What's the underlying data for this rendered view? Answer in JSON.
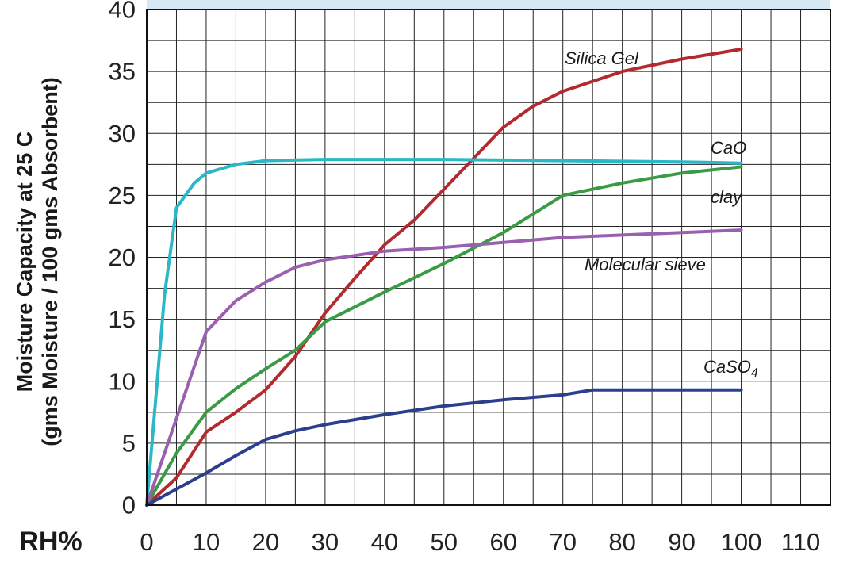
{
  "chart_data": {
    "type": "line",
    "xlabel": "RH%",
    "ylabel_line1": "Moisture Capacity at 25 C",
    "ylabel_line2": "(gms Moisture / 100 gms Absorbent)",
    "xlim": [
      0,
      115
    ],
    "ylim": [
      0,
      40
    ],
    "x_ticks": [
      0,
      10,
      20,
      30,
      40,
      50,
      60,
      70,
      80,
      90,
      100,
      110
    ],
    "y_ticks": [
      0,
      5,
      10,
      15,
      20,
      25,
      30,
      35,
      40
    ],
    "grid": true,
    "header_band_color": "#d6e8f4",
    "series": [
      {
        "name": "Silica Gel",
        "color": "#b22a2e",
        "points": [
          [
            0,
            0
          ],
          [
            5,
            2.2
          ],
          [
            10,
            5.9
          ],
          [
            15,
            7.5
          ],
          [
            20,
            9.3
          ],
          [
            25,
            12
          ],
          [
            30,
            15.5
          ],
          [
            35,
            18.3
          ],
          [
            40,
            21
          ],
          [
            45,
            23
          ],
          [
            50,
            25.5
          ],
          [
            55,
            28
          ],
          [
            60,
            30.5
          ],
          [
            65,
            32.2
          ],
          [
            70,
            33.4
          ],
          [
            80,
            35
          ],
          [
            90,
            36
          ],
          [
            100,
            36.8
          ]
        ]
      },
      {
        "name": "CaO",
        "color": "#2ab8c8",
        "points": [
          [
            0,
            0
          ],
          [
            3,
            17
          ],
          [
            5,
            24
          ],
          [
            8,
            26
          ],
          [
            10,
            26.8
          ],
          [
            15,
            27.5
          ],
          [
            20,
            27.8
          ],
          [
            30,
            27.9
          ],
          [
            50,
            27.9
          ],
          [
            70,
            27.8
          ],
          [
            90,
            27.7
          ],
          [
            100,
            27.6
          ]
        ]
      },
      {
        "name": "clay",
        "color": "#3a9a45",
        "points": [
          [
            0,
            0
          ],
          [
            5,
            4.2
          ],
          [
            10,
            7.5
          ],
          [
            15,
            9.4
          ],
          [
            20,
            11
          ],
          [
            25,
            12.5
          ],
          [
            30,
            14.8
          ],
          [
            40,
            17.2
          ],
          [
            50,
            19.5
          ],
          [
            60,
            22
          ],
          [
            70,
            25
          ],
          [
            80,
            26
          ],
          [
            90,
            26.8
          ],
          [
            100,
            27.3
          ]
        ]
      },
      {
        "name": "Molecular sieve",
        "color": "#9b5fb0",
        "points": [
          [
            0,
            0
          ],
          [
            5,
            7
          ],
          [
            10,
            14
          ],
          [
            12,
            15
          ],
          [
            15,
            16.5
          ],
          [
            20,
            18
          ],
          [
            25,
            19.2
          ],
          [
            30,
            19.8
          ],
          [
            40,
            20.5
          ],
          [
            50,
            20.8
          ],
          [
            60,
            21.2
          ],
          [
            70,
            21.6
          ],
          [
            80,
            21.8
          ],
          [
            90,
            22
          ],
          [
            100,
            22.2
          ]
        ]
      },
      {
        "name": "CaSO₄",
        "color": "#2c3f8e",
        "points": [
          [
            0,
            0
          ],
          [
            5,
            1.3
          ],
          [
            10,
            2.6
          ],
          [
            15,
            4
          ],
          [
            20,
            5.3
          ],
          [
            25,
            6
          ],
          [
            30,
            6.5
          ],
          [
            40,
            7.3
          ],
          [
            50,
            8
          ],
          [
            60,
            8.5
          ],
          [
            70,
            8.9
          ],
          [
            75,
            9.3
          ],
          [
            80,
            9.3
          ],
          [
            100,
            9.3
          ]
        ]
      }
    ],
    "series_labels": {
      "silica_gel": "Silica Gel",
      "cao": "CaO",
      "clay": "clay",
      "molecular_sieve": "Molecular sieve",
      "caso4": "CaSO",
      "caso4_sub": "4"
    }
  }
}
